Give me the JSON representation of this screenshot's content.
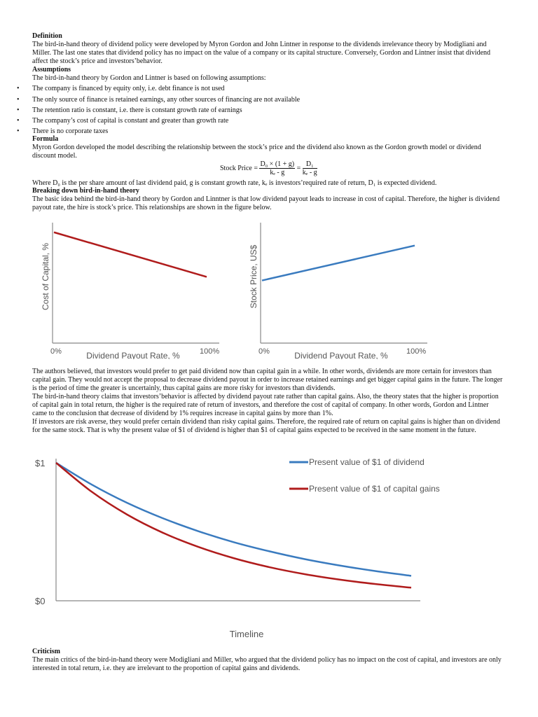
{
  "definition": {
    "heading": "Definition",
    "lines": [
      "The bird-in-hand theory of dividend policy were developed by Myron Gordon and John Lintner in response to the dividends irrelevance theory by Modigliani and",
      "Miller. The last one states that dividend policy has no impact on the value of a company or its capital structure. Conversely, Gordon and Lintner insist that dividend",
      "affect the stock’s price and investors’behavior."
    ]
  },
  "assumptions": {
    "heading": "Assumptions",
    "intro": "The bird-in-hand theory by Gordon and Lintner is based on following assumptions:",
    "items": [
      "The company is financed by equity only, i.e. debt finance is not used",
      "The only source of finance is retained earnings, any other sources of financing are not available",
      "The retention ratio is constant, i.e. there is constant growth rate of earnings",
      "The company’s cost of capital is constant and greater than growth rate",
      "There is no corporate taxes"
    ]
  },
  "formula": {
    "heading": "Formula",
    "lines": [
      "Myron Gordon developed the model describing the relationship between the stock’s price and the dividend also known as the Gordon growth model or dividend",
      "discount model."
    ],
    "label": "Stock Price =",
    "num1": "D₀ × (1 + g)",
    "den1": "kₑ - g",
    "eq": "=",
    "num2": "D₁",
    "den2": "kₑ - g",
    "where": "Where D₀ is the per share amount of last dividend paid, g is constant growth rate, kₑ is investors’required rate of return, D₁ is expected dividend."
  },
  "breaking": {
    "heading": "Breaking down bird-in-hand theory",
    "lines": [
      "The basic idea behind the bird-in-hand theory by Gordon and Linntner is that low dividend payout leads to increase in cost of capital. Therefore, the higher is dividend",
      "payout rate, the hire is stock’s price. This relationships are shown in the figure below."
    ]
  },
  "body2": {
    "lines": [
      "The authors believed, that investors would prefer to get paid dividend now than capital gain in a while. In other words, dividends are more certain for investors than",
      "capital gain. They would not accept the proposal to decrease dividend payout in order to increase retained earnings and get bigger capital gains in the future. The longer",
      "is the period of time the greater is uncertainly, thus capital gains are more risky for investors than dividends.",
      "The bird-in-hand theory claims that investors’behavior is affected by dividend payout rate rather than capital gains. Also, the theory states that the higher is proportion",
      "of capital gain in total return, the higher is the required rate of return of investors, and therefore the cost of capital of company. In other words, Gordon and Lintner",
      "came to the conclusion that decrease of dividend by 1% requires increase in capital gains by more than 1%.",
      "If investors are risk averse, they would prefer certain dividend than risky capital gains. Therefore, the required rate of return on capital gains is higher than on dividend",
      "for the same stock. That is why the present value of $1 of dividend is higher than $1 of capital gains expected to be received in the same moment in the future."
    ]
  },
  "criticism": {
    "heading": "Criticism",
    "lines": [
      "The main critics of the bird-in-hand theory were Modigliani and Miller, who argued that the dividend policy has no impact on the cost of capital, and investors are only",
      "interested in total return, i.e. they are irrelevant to the proportion of capital gains and dividends."
    ]
  },
  "chart_data": [
    {
      "type": "line",
      "xlabel": "Dividend Payout Rate, %",
      "ylabel": "Cost of Capital, %",
      "xticks": [
        "0%",
        "100%"
      ],
      "x": [
        0,
        100
      ],
      "series": [
        {
          "values": [
            0.92,
            0.55
          ],
          "color": "#b01c1c"
        }
      ],
      "ylim": [
        0,
        1
      ],
      "grid": false
    },
    {
      "type": "line",
      "xlabel": "Dividend Payout Rate, %",
      "ylabel": "Stock Price, US$",
      "xticks": [
        "0%",
        "100%"
      ],
      "x": [
        0,
        100
      ],
      "series": [
        {
          "values": [
            0.52,
            0.81
          ],
          "color": "#3a7bbf"
        }
      ],
      "ylim": [
        0,
        1
      ],
      "grid": false
    },
    {
      "type": "line",
      "xlabel": "Timeline",
      "yticks": [
        "$0",
        "$1"
      ],
      "ylim": [
        0,
        1
      ],
      "x": [
        0,
        0.1,
        0.2,
        0.3,
        0.4,
        0.5,
        0.6,
        0.7,
        0.8,
        0.9,
        1.0
      ],
      "series": [
        {
          "name": "Present value of $1 of dividend",
          "color": "#3a7bbf",
          "values": [
            1,
            0.843,
            0.71,
            0.599,
            0.505,
            0.425,
            0.359,
            0.302,
            0.255,
            0.215,
            0.181
          ]
        },
        {
          "name": "Present value of $1 of capital gains",
          "color": "#b01c1c",
          "values": [
            1,
            0.791,
            0.625,
            0.494,
            0.391,
            0.309,
            0.244,
            0.193,
            0.153,
            0.121,
            0.095
          ]
        }
      ],
      "legend": "top-right",
      "grid": false
    }
  ]
}
